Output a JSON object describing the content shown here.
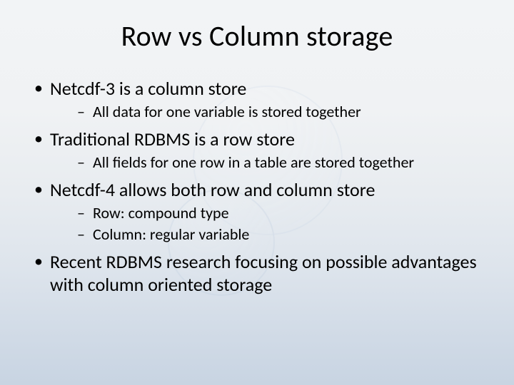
{
  "title": "Row vs Column storage",
  "title_fontsize": 40,
  "l1_fontsize": 26,
  "l2_fontsize": 22,
  "background_gradient": [
    "#f2f4f6",
    "#c8d4e2"
  ],
  "text_color": "#000000",
  "bullets": [
    {
      "text": "Netcdf-3 is a column store",
      "sub": [
        "All data for one variable is stored together"
      ]
    },
    {
      "text": "Traditional RDBMS is a row store",
      "sub": [
        "All fields for one row in a table are stored together"
      ]
    },
    {
      "text": "Netcdf-4 allows both row and column store",
      "sub": [
        "Row: compound type",
        "Column: regular variable"
      ]
    },
    {
      "text": "Recent RDBMS research focusing on possible advantages with column oriented storage",
      "sub": []
    }
  ]
}
